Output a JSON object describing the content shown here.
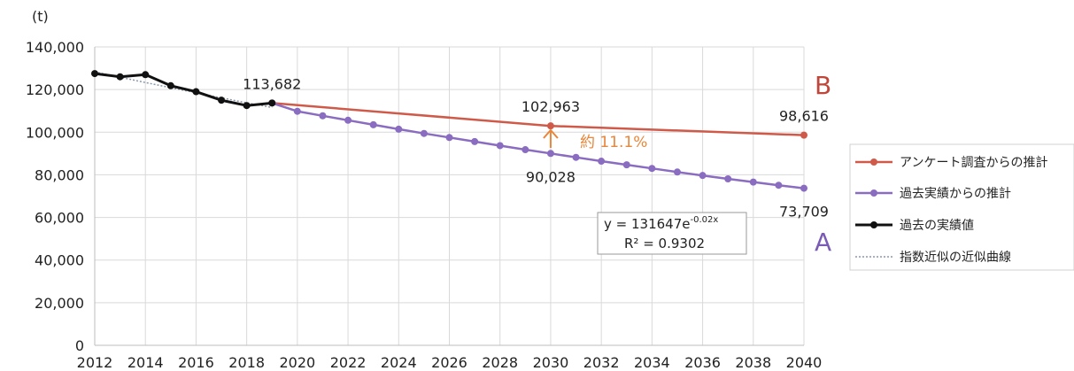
{
  "chart_data": {
    "type": "line",
    "unit_label": "(t)",
    "xlim": [
      2012,
      2040
    ],
    "ylim": [
      0,
      140000
    ],
    "y_ticks": [
      0,
      20000,
      40000,
      60000,
      80000,
      100000,
      120000,
      140000
    ],
    "y_tick_labels": [
      "0",
      "20,000",
      "40,000",
      "60,000",
      "80,000",
      "100,000",
      "120,000",
      "140,000"
    ],
    "x_ticks": [
      2012,
      2014,
      2016,
      2018,
      2020,
      2022,
      2024,
      2026,
      2028,
      2030,
      2032,
      2034,
      2036,
      2038,
      2040
    ],
    "x_tick_labels": [
      "2012",
      "2014",
      "2016",
      "2018",
      "2020",
      "2022",
      "2024",
      "2026",
      "2028",
      "2030",
      "2032",
      "2034",
      "2036",
      "2038",
      "2040"
    ],
    "grid": true,
    "legend_position": "right",
    "series": [
      {
        "name": "アンケート調査からの推計",
        "color": "#d05a49",
        "marker": "circle",
        "x": [
          2019,
          2030,
          2040
        ],
        "y": [
          113682,
          102963,
          98616
        ],
        "markers_at": [
          2030,
          2040
        ]
      },
      {
        "name": "過去実績からの推計",
        "color": "#8a6cc0",
        "marker": "circle",
        "x": [
          2019,
          2020,
          2021,
          2022,
          2023,
          2024,
          2025,
          2026,
          2027,
          2028,
          2029,
          2030,
          2031,
          2032,
          2033,
          2034,
          2035,
          2036,
          2037,
          2038,
          2039,
          2040
        ],
        "y": [
          113682,
          109800,
          107700,
          105600,
          103500,
          101400,
          99400,
          97500,
          95600,
          93700,
          91800,
          90028,
          88200,
          86400,
          84700,
          83000,
          81300,
          79700,
          78100,
          76600,
          75100,
          73709
        ]
      },
      {
        "name": "過去の実績値",
        "color": "#111111",
        "marker": "circle",
        "x": [
          2012,
          2013,
          2014,
          2015,
          2016,
          2017,
          2018,
          2019
        ],
        "y": [
          127500,
          126000,
          127000,
          121800,
          119000,
          115000,
          112500,
          113682
        ]
      },
      {
        "name": "指数近似の近似曲線",
        "color": "#8899aa",
        "dashed": true,
        "x": [
          2012,
          2013,
          2014,
          2015,
          2016,
          2017,
          2018,
          2019
        ],
        "y": [
          128300,
          125800,
          123300,
          120900,
          118500,
          116100,
          113800,
          111600
        ]
      }
    ],
    "data_labels": [
      {
        "text": "113,682",
        "x": 2019,
        "y": 113682,
        "pos": "above"
      },
      {
        "text": "102,963",
        "x": 2030,
        "y": 102963,
        "pos": "above"
      },
      {
        "text": "98,616",
        "x": 2040,
        "y": 98616,
        "pos": "above"
      },
      {
        "text": "90,028",
        "x": 2030,
        "y": 90028,
        "pos": "below"
      },
      {
        "text": "73,709",
        "x": 2040,
        "y": 73709,
        "pos": "below"
      }
    ],
    "annotations": {
      "letter_b": "B",
      "letter_b_color": "#c0463a",
      "letter_a": "A",
      "letter_a_color": "#7a5bb5",
      "gap_text": "約 11.1%",
      "gap_color": "#e8863a",
      "equation_main": "y = 131647e",
      "equation_exp": "-0.02x",
      "r_squared": "R² = 0.9302"
    }
  }
}
